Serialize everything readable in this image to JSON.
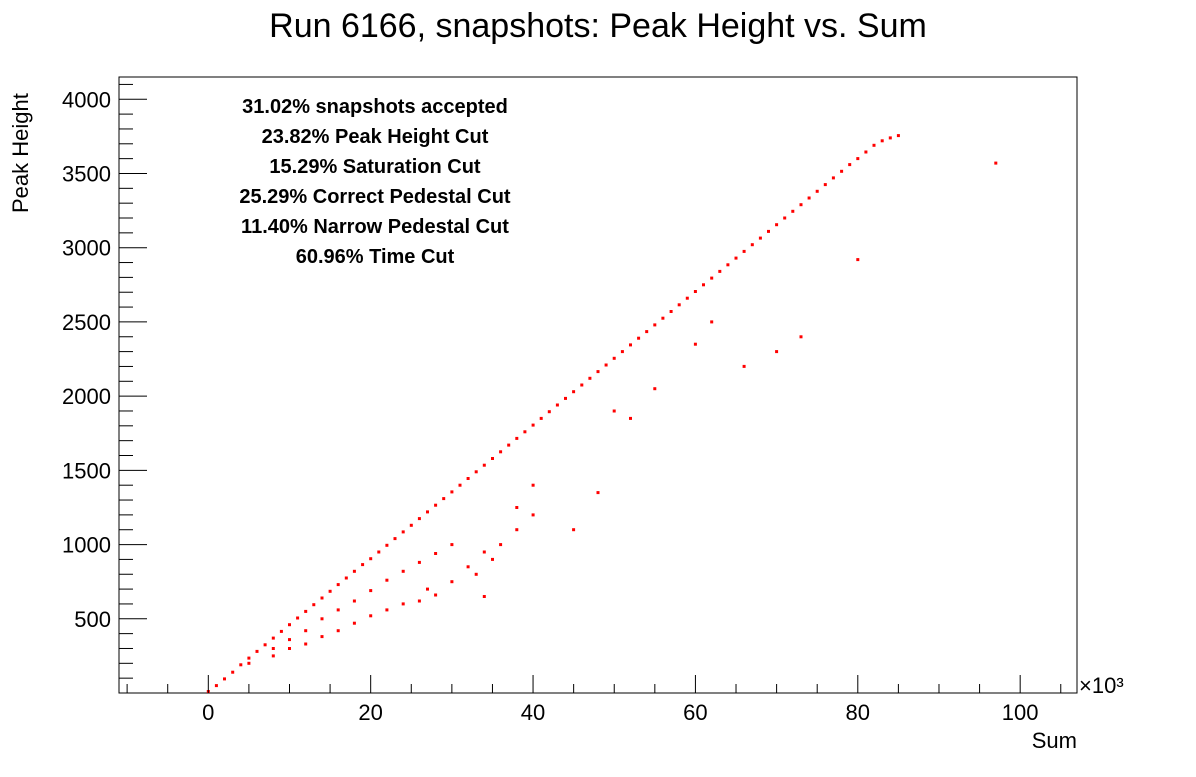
{
  "chart_data": {
    "type": "scatter",
    "title": "Run 6166, snapshots: Peak Height vs. Sum",
    "xlabel": "Sum",
    "ylabel": "Peak Height",
    "x_multiplier": "×10³",
    "xlim": [
      -11000,
      107000
    ],
    "ylim": [
      0,
      4150
    ],
    "x_tick_labels": [
      {
        "value": 0,
        "label": "0"
      },
      {
        "value": 20000,
        "label": "20"
      },
      {
        "value": 40000,
        "label": "40"
      },
      {
        "value": 60000,
        "label": "60"
      },
      {
        "value": 80000,
        "label": "80"
      },
      {
        "value": 100000,
        "label": "100"
      }
    ],
    "y_tick_labels": [
      {
        "value": 500,
        "label": "500"
      },
      {
        "value": 1000,
        "label": "1000"
      },
      {
        "value": 1500,
        "label": "1500"
      },
      {
        "value": 2000,
        "label": "2000"
      },
      {
        "value": 2500,
        "label": "2500"
      },
      {
        "value": 3000,
        "label": "3000"
      },
      {
        "value": 3500,
        "label": "3500"
      },
      {
        "value": 4000,
        "label": "4000"
      }
    ],
    "grid": false,
    "legend": "none",
    "series": [
      {
        "color": "#ff0000",
        "points": [
          [
            0,
            10
          ],
          [
            1000,
            50
          ],
          [
            2000,
            95
          ],
          [
            3000,
            140
          ],
          [
            4000,
            190
          ],
          [
            5000,
            235
          ],
          [
            6000,
            280
          ],
          [
            7000,
            325
          ],
          [
            8000,
            370
          ],
          [
            9000,
            415
          ],
          [
            10000,
            460
          ],
          [
            11000,
            505
          ],
          [
            12000,
            550
          ],
          [
            13000,
            595
          ],
          [
            14000,
            640
          ],
          [
            15000,
            685
          ],
          [
            16000,
            730
          ],
          [
            17000,
            775
          ],
          [
            18000,
            820
          ],
          [
            19000,
            865
          ],
          [
            20000,
            905
          ],
          [
            21000,
            950
          ],
          [
            22000,
            995
          ],
          [
            23000,
            1040
          ],
          [
            24000,
            1085
          ],
          [
            25000,
            1130
          ],
          [
            26000,
            1175
          ],
          [
            27000,
            1220
          ],
          [
            28000,
            1265
          ],
          [
            29000,
            1310
          ],
          [
            30000,
            1355
          ],
          [
            31000,
            1400
          ],
          [
            32000,
            1445
          ],
          [
            33000,
            1490
          ],
          [
            34000,
            1535
          ],
          [
            35000,
            1580
          ],
          [
            36000,
            1625
          ],
          [
            37000,
            1670
          ],
          [
            38000,
            1715
          ],
          [
            39000,
            1760
          ],
          [
            40000,
            1805
          ],
          [
            41000,
            1850
          ],
          [
            42000,
            1895
          ],
          [
            43000,
            1940
          ],
          [
            44000,
            1985
          ],
          [
            45000,
            2030
          ],
          [
            46000,
            2075
          ],
          [
            47000,
            2120
          ],
          [
            48000,
            2165
          ],
          [
            49000,
            2210
          ],
          [
            50000,
            2255
          ],
          [
            51000,
            2300
          ],
          [
            52000,
            2345
          ],
          [
            53000,
            2390
          ],
          [
            54000,
            2435
          ],
          [
            55000,
            2480
          ],
          [
            56000,
            2525
          ],
          [
            57000,
            2570
          ],
          [
            58000,
            2615
          ],
          [
            59000,
            2660
          ],
          [
            60000,
            2705
          ],
          [
            61000,
            2750
          ],
          [
            62000,
            2795
          ],
          [
            63000,
            2840
          ],
          [
            64000,
            2885
          ],
          [
            65000,
            2930
          ],
          [
            66000,
            2975
          ],
          [
            67000,
            3020
          ],
          [
            68000,
            3065
          ],
          [
            69000,
            3110
          ],
          [
            70000,
            3155
          ],
          [
            71000,
            3200
          ],
          [
            72000,
            3245
          ],
          [
            73000,
            3290
          ],
          [
            74000,
            3335
          ],
          [
            75000,
            3380
          ],
          [
            76000,
            3425
          ],
          [
            77000,
            3470
          ],
          [
            78000,
            3515
          ],
          [
            79000,
            3560
          ],
          [
            80000,
            3600
          ],
          [
            81000,
            3645
          ],
          [
            82000,
            3690
          ],
          [
            83000,
            3720
          ],
          [
            84000,
            3740
          ],
          [
            85000,
            3755
          ],
          [
            5000,
            200
          ],
          [
            8000,
            300
          ],
          [
            10000,
            360
          ],
          [
            12000,
            420
          ],
          [
            14000,
            500
          ],
          [
            16000,
            560
          ],
          [
            18000,
            620
          ],
          [
            20000,
            690
          ],
          [
            22000,
            760
          ],
          [
            24000,
            820
          ],
          [
            26000,
            880
          ],
          [
            28000,
            940
          ],
          [
            30000,
            1000
          ],
          [
            10000,
            300
          ],
          [
            14000,
            380
          ],
          [
            18000,
            470
          ],
          [
            22000,
            560
          ],
          [
            26000,
            620
          ],
          [
            28000,
            660
          ],
          [
            30000,
            750
          ],
          [
            33000,
            800
          ],
          [
            35000,
            900
          ],
          [
            36000,
            1000
          ],
          [
            38000,
            1100
          ],
          [
            40000,
            1200
          ],
          [
            8000,
            250
          ],
          [
            12000,
            330
          ],
          [
            16000,
            420
          ],
          [
            20000,
            520
          ],
          [
            24000,
            600
          ],
          [
            27000,
            700
          ],
          [
            32000,
            850
          ],
          [
            34000,
            950
          ],
          [
            38000,
            1250
          ],
          [
            40000,
            1400
          ],
          [
            50000,
            1900
          ],
          [
            52000,
            1850
          ],
          [
            55000,
            2050
          ],
          [
            60000,
            2350
          ],
          [
            62000,
            2500
          ],
          [
            66000,
            2200
          ],
          [
            70000,
            2300
          ],
          [
            73000,
            2400
          ],
          [
            80000,
            2920
          ],
          [
            97000,
            3570
          ],
          [
            34000,
            650
          ],
          [
            45000,
            1100
          ],
          [
            48000,
            1350
          ]
        ]
      }
    ],
    "annotations": [
      "31.02% snapshots accepted",
      "23.82% Peak Height Cut",
      "15.29% Saturation Cut",
      "25.29% Correct Pedestal Cut",
      "11.40% Narrow Pedestal Cut",
      "60.96% Time Cut"
    ]
  }
}
